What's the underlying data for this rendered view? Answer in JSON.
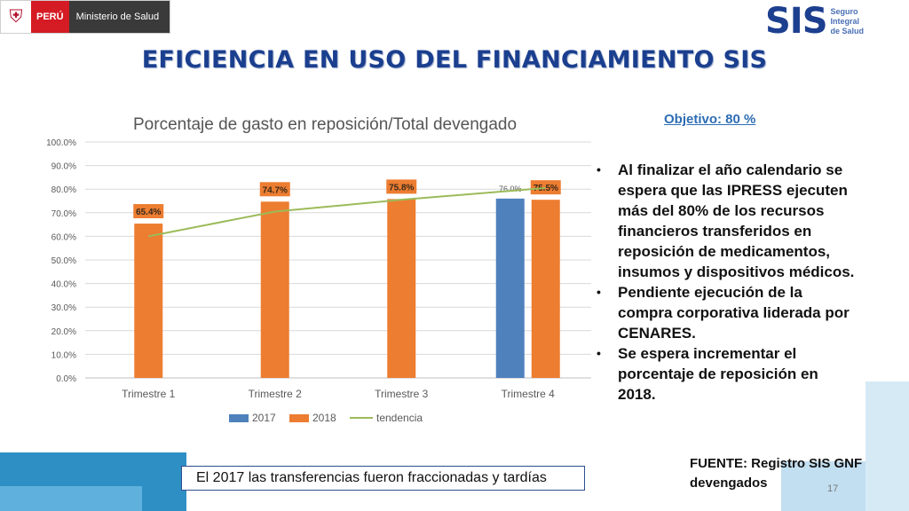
{
  "header": {
    "gov_logo": {
      "country": "PERÚ",
      "ministry": "Ministerio de Salud",
      "icon": "coat-of-arms-icon"
    },
    "sis_logo": {
      "acronym": "SIS",
      "line1": "Seguro",
      "line2": "Integral",
      "line3": "de Salud"
    }
  },
  "title": "EFICIENCIA EN USO DEL FINANCIAMIENTO SIS",
  "objective": "Objetivo:  80 %",
  "bullets": [
    "Al finalizar el año calendario se espera que las IPRESS ejecuten más del 80% de los recursos financieros transferidos en reposición de medicamentos, insumos y dispositivos médicos.",
    "Pendiente ejecución de la compra corporativa liderada por CENARES.",
    "Se espera  incrementar el porcentaje de reposición en 2018."
  ],
  "source": "FUENTE: Registro SIS GNF devengados",
  "page_number": "17",
  "note": "El 2017 las transferencias fueron fraccionadas y tardías",
  "colors": {
    "series_2017": "#4f81bd",
    "series_2018": "#ed7d31",
    "trend": "#9bbb59",
    "title": "#1b3f8f"
  },
  "chart_data": {
    "type": "bar",
    "title": "Porcentaje de gasto en reposición/Total devengado",
    "categories": [
      "Trimestre 1",
      "Trimestre 2",
      "Trimestre 3",
      "Trimestre  4"
    ],
    "series": [
      {
        "name": "2017",
        "type": "bar",
        "values": [
          null,
          null,
          null,
          76.0
        ],
        "labels": [
          "",
          "",
          "",
          "76.0%"
        ]
      },
      {
        "name": "2018",
        "type": "bar",
        "values": [
          65.4,
          74.7,
          75.8,
          75.5
        ],
        "labels": [
          "65.4%",
          "74.7%",
          "75.8%",
          "75.5%"
        ]
      },
      {
        "name": "tendencia",
        "type": "line",
        "values": [
          60.0,
          70.5,
          75.5,
          80.5
        ]
      }
    ],
    "yticks": [
      "0.0%",
      "10.0%",
      "20.0%",
      "30.0%",
      "40.0%",
      "50.0%",
      "60.0%",
      "70.0%",
      "80.0%",
      "90.0%",
      "100.0%"
    ],
    "ylim": [
      0,
      100
    ],
    "grid": true,
    "legend_position": "bottom"
  }
}
